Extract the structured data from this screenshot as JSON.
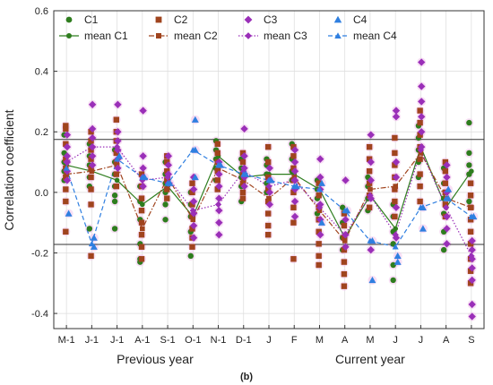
{
  "chart_data": {
    "type": "scatter",
    "ylabel": "Correlation coefficient",
    "panel_label": "(b)",
    "ylim": [
      -0.45,
      0.6
    ],
    "yticks": [
      "-0.4",
      "-0.2",
      "0.0",
      "0.2",
      "0.4",
      "0.6"
    ],
    "ytick_values": [
      -0.4,
      -0.2,
      0.0,
      0.2,
      0.4,
      0.6
    ],
    "categories": [
      "M-1",
      "J-1",
      "J-1",
      "A-1",
      "S-1",
      "O-1",
      "N-1",
      "D-1",
      "J",
      "F",
      "M",
      "A",
      "M",
      "J",
      "J",
      "A",
      "S"
    ],
    "group_labels": [
      {
        "text": "Previous year",
        "from": 0,
        "to": 7
      },
      {
        "text": "Current year",
        "from": 8,
        "to": 16
      }
    ],
    "reference_lines": [
      0.175,
      -0.172
    ],
    "grid": true,
    "legend_position": "top-left",
    "series": [
      {
        "name": "C1",
        "mean_name": "mean C1",
        "color": "#2e7d1e",
        "marker": "circle",
        "line_style": "solid",
        "mean": [
          0.09,
          0.07,
          0.04,
          -0.04,
          0.02,
          -0.08,
          0.12,
          0.05,
          0.06,
          0.06,
          0.01,
          -0.15,
          -0.01,
          -0.12,
          0.15,
          -0.05,
          0.07
        ],
        "points": [
          [
            0.19,
            0.13,
            0.1,
            0.07,
            0.04
          ],
          [
            0.16,
            0.12,
            0.09,
            0.05,
            0.02,
            -0.12
          ],
          [
            0.14,
            0.1,
            0.06,
            0.02,
            -0.01,
            -0.03,
            -0.12
          ],
          [
            0.02,
            -0.03,
            -0.09,
            -0.17,
            -0.22,
            -0.23
          ],
          [
            0.1,
            0.06,
            0.03,
            0.0,
            -0.04,
            -0.09
          ],
          [
            0.0,
            -0.04,
            -0.08,
            -0.13,
            -0.21
          ],
          [
            0.17,
            0.14,
            0.11,
            0.08,
            0.04
          ],
          [
            0.11,
            0.08,
            0.05,
            0.02,
            -0.03
          ],
          [
            0.11,
            0.09,
            0.06,
            0.03,
            0.0
          ],
          [
            0.16,
            0.11,
            0.07,
            0.04
          ],
          [
            0.04,
            0.01,
            -0.02,
            -0.07
          ],
          [
            -0.05,
            -0.1,
            -0.15,
            -0.19
          ],
          [
            0.05,
            0.02,
            -0.02,
            -0.06
          ],
          [
            -0.04,
            -0.08,
            -0.13,
            -0.17,
            -0.24,
            -0.29
          ],
          [
            0.22,
            0.18,
            0.14,
            0.1,
            0.05
          ],
          [
            0.08,
            0.03,
            -0.02,
            -0.07,
            -0.13,
            -0.19
          ],
          [
            0.23,
            0.13,
            0.09,
            0.06,
            -0.03
          ]
        ]
      },
      {
        "name": "C2",
        "mean_name": "mean C2",
        "color": "#a0441e",
        "marker": "square",
        "line_style": "dashdot",
        "mean": [
          0.06,
          0.07,
          0.09,
          -0.12,
          0.05,
          -0.09,
          0.08,
          0.04,
          -0.02,
          0.05,
          -0.06,
          -0.16,
          0.01,
          0.02,
          0.13,
          -0.02,
          -0.05
        ],
        "points": [
          [
            0.22,
            0.21,
            0.16,
            0.11,
            0.08,
            0.05,
            0.01,
            -0.03,
            -0.13
          ],
          [
            0.2,
            0.17,
            0.14,
            0.11,
            0.08,
            0.05,
            0.01,
            -0.04,
            -0.21
          ],
          [
            0.24,
            0.2,
            0.17,
            0.13,
            0.1,
            0.06,
            0.02
          ],
          [
            0.06,
            0.02,
            -0.02,
            -0.06,
            -0.1,
            -0.14,
            -0.18,
            -0.22
          ],
          [
            0.12,
            0.1,
            0.07,
            0.04,
            0.01,
            -0.02
          ],
          [
            0.03,
            0.0,
            -0.04,
            -0.08,
            -0.12,
            -0.15,
            -0.18
          ],
          [
            0.16,
            0.13,
            0.1,
            0.07,
            0.04,
            0.01
          ],
          [
            0.13,
            0.1,
            0.06,
            0.03,
            0.0,
            -0.02
          ],
          [
            0.15,
            0.1,
            0.05,
            0.01,
            -0.03,
            -0.07,
            -0.11,
            -0.14
          ],
          [
            0.15,
            0.12,
            0.08,
            0.04,
            0.0,
            -0.05,
            -0.1,
            -0.22
          ],
          [
            0.03,
            -0.01,
            -0.05,
            -0.09,
            -0.13,
            -0.17,
            -0.21,
            -0.24
          ],
          [
            -0.07,
            -0.11,
            -0.15,
            -0.19,
            -0.23,
            -0.27,
            -0.31
          ],
          [
            0.15,
            0.11,
            0.07,
            0.03,
            -0.01,
            -0.05
          ],
          [
            0.18,
            0.13,
            0.09,
            0.05,
            0.01,
            -0.03,
            -0.08
          ],
          [
            0.27,
            0.23,
            0.19,
            0.15,
            0.11,
            0.06,
            0.02,
            -0.03
          ],
          [
            0.1,
            0.07,
            0.03,
            0.0,
            -0.04,
            -0.08
          ],
          [
            0.03,
            -0.01,
            -0.05,
            -0.09,
            -0.13,
            -0.17,
            -0.22,
            -0.26,
            -0.3
          ]
        ]
      },
      {
        "name": "C3",
        "mean_name": "mean C3",
        "color": "#9a2fb8",
        "marker": "diamond",
        "line_style": "dotted",
        "mean": [
          0.1,
          0.15,
          0.15,
          0.04,
          0.05,
          -0.06,
          -0.04,
          0.07,
          0.02,
          0.04,
          -0.05,
          -0.14,
          -0.01,
          -0.14,
          0.14,
          -0.05,
          -0.21
        ],
        "points": [
          [
            0.19,
            0.15,
            0.12,
            0.1,
            0.07,
            0.04
          ],
          [
            0.29,
            0.21,
            0.18,
            0.15,
            0.12,
            0.09
          ],
          [
            0.29,
            0.2,
            0.17,
            0.14,
            0.11,
            0.08
          ],
          [
            0.27,
            0.12,
            0.08,
            0.05,
            0.02
          ],
          [
            0.12,
            0.09,
            0.06,
            0.03
          ],
          [
            0.05,
            0.01,
            -0.03,
            -0.07,
            -0.11,
            -0.15
          ],
          [
            0.1,
            0.06,
            0.02,
            -0.02,
            -0.06,
            -0.1,
            -0.14
          ],
          [
            0.21,
            0.12,
            0.08,
            0.05,
            0.02
          ],
          [
            0.08,
            0.04,
            0.0,
            -0.04
          ],
          [
            0.14,
            0.1,
            0.07,
            0.04,
            0.01,
            -0.03,
            -0.08
          ],
          [
            0.11,
            0.05,
            0.01,
            -0.04,
            -0.09,
            -0.14
          ],
          [
            0.04,
            -0.09,
            -0.14,
            -0.18
          ],
          [
            0.19,
            0.1,
            0.04,
            -0.02,
            -0.19
          ],
          [
            0.27,
            0.25,
            0.1,
            0.05,
            -0.05,
            -0.15
          ],
          [
            0.43,
            0.35,
            0.3,
            0.25,
            0.2,
            0.15
          ],
          [
            0.09,
            0.05,
            0.0,
            -0.08,
            -0.12,
            -0.17
          ],
          [
            -0.16,
            -0.19,
            -0.22,
            -0.25,
            -0.29,
            -0.37,
            -0.41
          ]
        ]
      },
      {
        "name": "C4",
        "mean_name": "mean C4",
        "color": "#2f7fe0",
        "marker": "triangle",
        "line_style": "dashed",
        "mean": [
          0.08,
          -0.17,
          0.11,
          0.05,
          0.03,
          0.14,
          0.09,
          0.06,
          0.04,
          0.02,
          0.01,
          -0.06,
          -0.16,
          -0.18,
          -0.05,
          -0.02,
          -0.08
        ],
        "points": [
          [
            -0.07
          ],
          [
            -0.15,
            -0.18
          ],
          [
            0.12
          ],
          [
            0.05
          ],
          [
            0.03
          ],
          [
            0.24,
            0.14,
            0.05
          ],
          [
            0.09
          ],
          [
            0.06
          ],
          [
            0.04
          ],
          [
            0.02
          ],
          [
            0.03,
            -0.1
          ],
          [
            -0.06
          ],
          [
            -0.16,
            -0.29
          ],
          [
            -0.21,
            -0.23
          ],
          [
            -0.05,
            -0.12
          ],
          [
            -0.02,
            0.01
          ],
          [
            -0.08
          ]
        ]
      }
    ]
  }
}
